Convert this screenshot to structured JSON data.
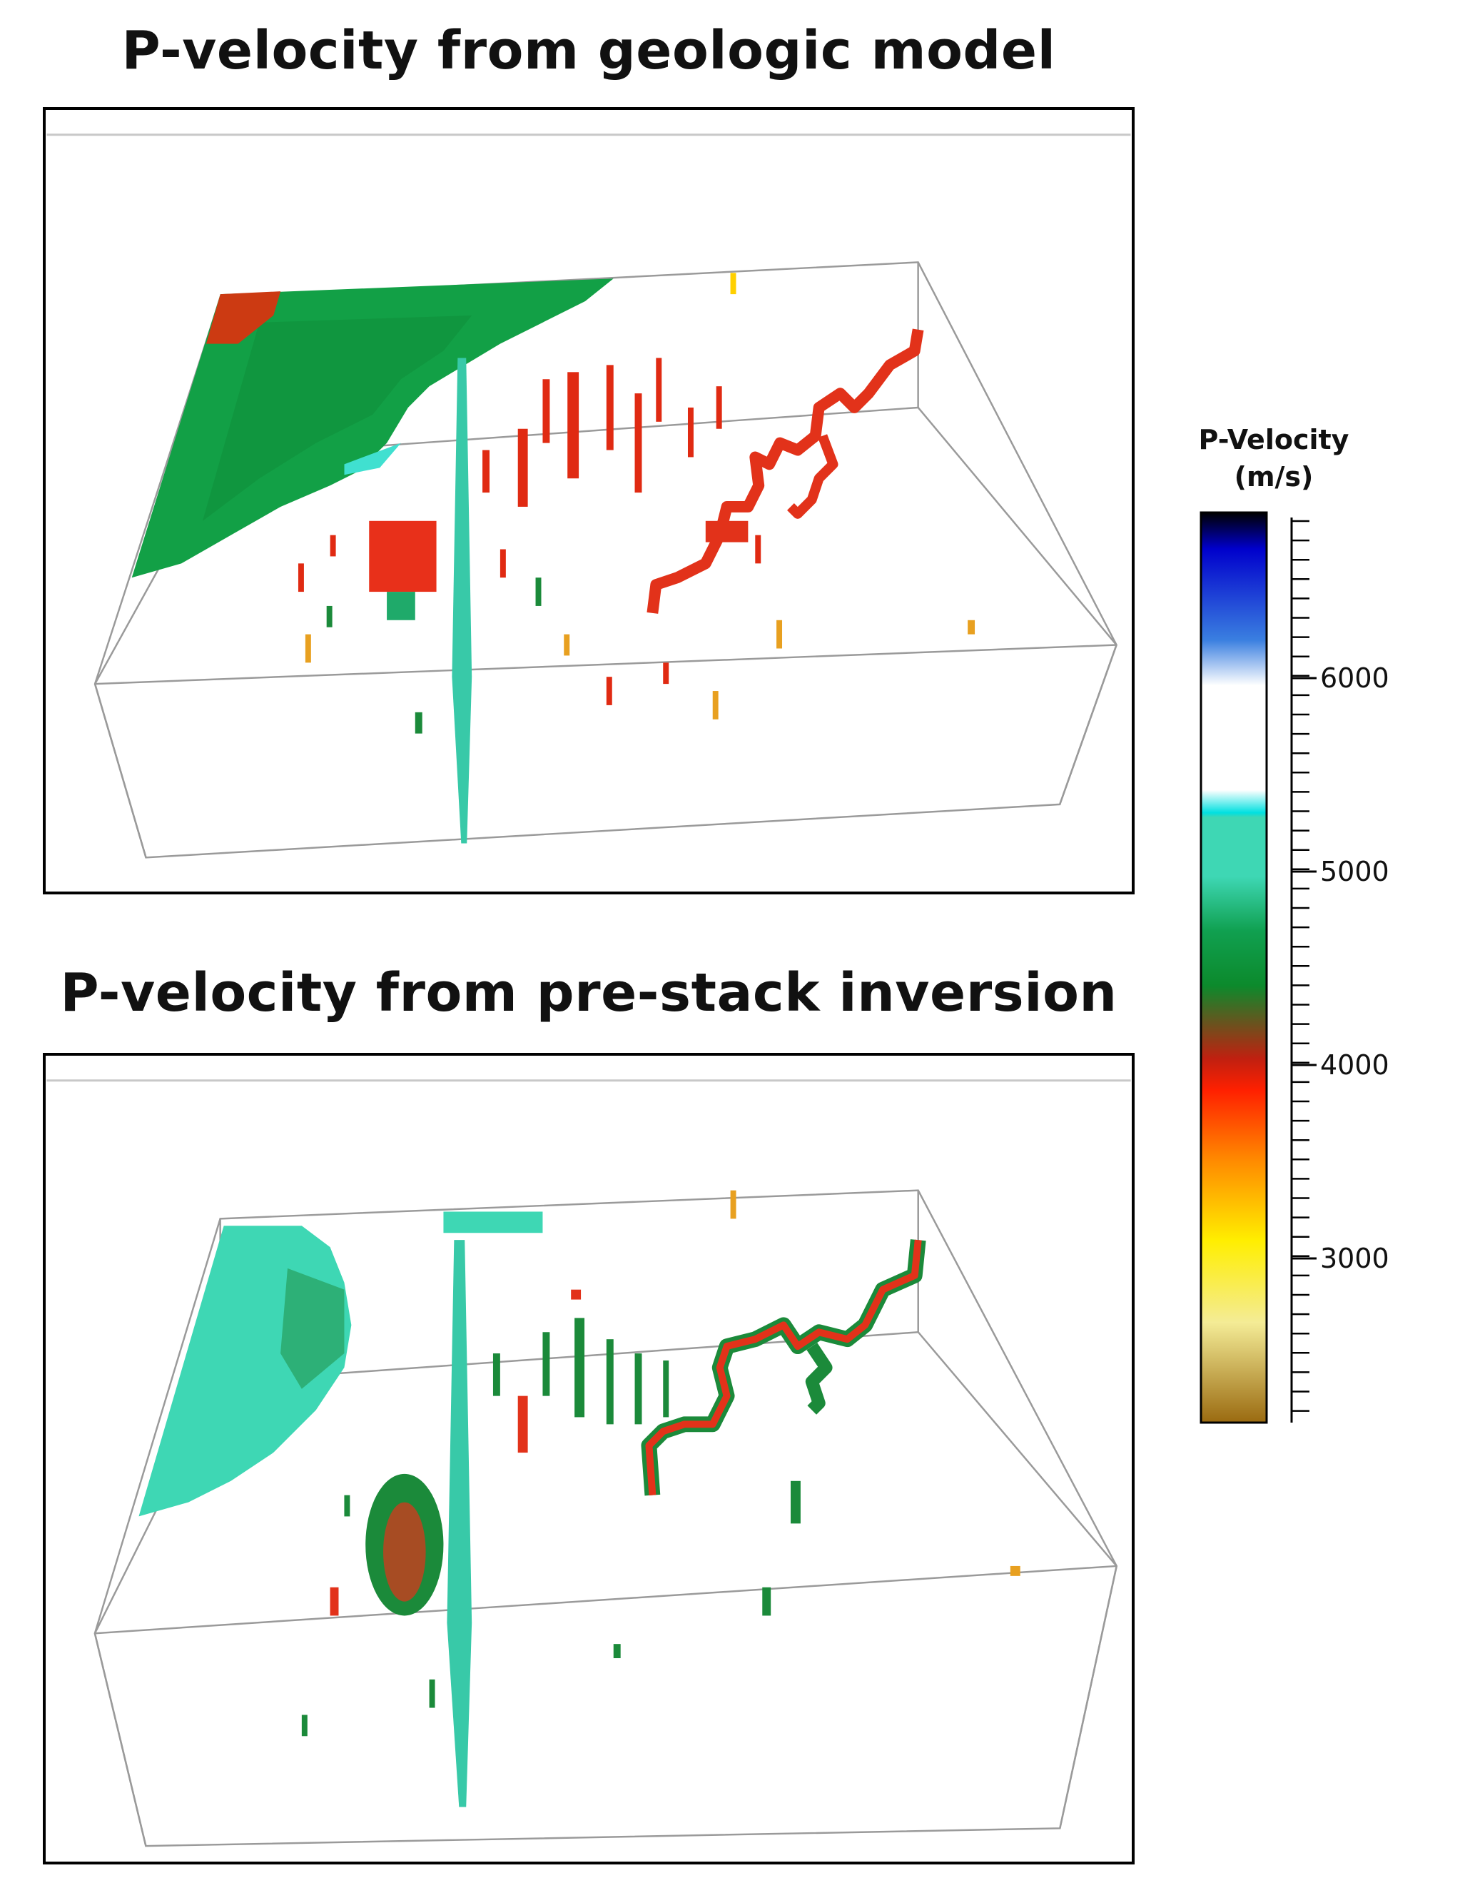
{
  "panels": [
    {
      "title": "P-velocity from geologic model"
    },
    {
      "title": "P-velocity from pre-stack inversion"
    }
  ],
  "colorbar": {
    "title_line1": "P-Velocity",
    "title_line2": "(m/s)",
    "ticks": [
      "6000",
      "5000",
      "4000",
      "3000"
    ],
    "colors": [
      "#000000",
      "#0000cc",
      "#3a7fe0",
      "#ffffff",
      "#00e0e0",
      "#3ed7b4",
      "#10a050",
      "#0c8a2c",
      "#c02010",
      "#ff2000",
      "#ff8800",
      "#ffee00",
      "#f4ec96",
      "#9a6a10"
    ]
  }
}
